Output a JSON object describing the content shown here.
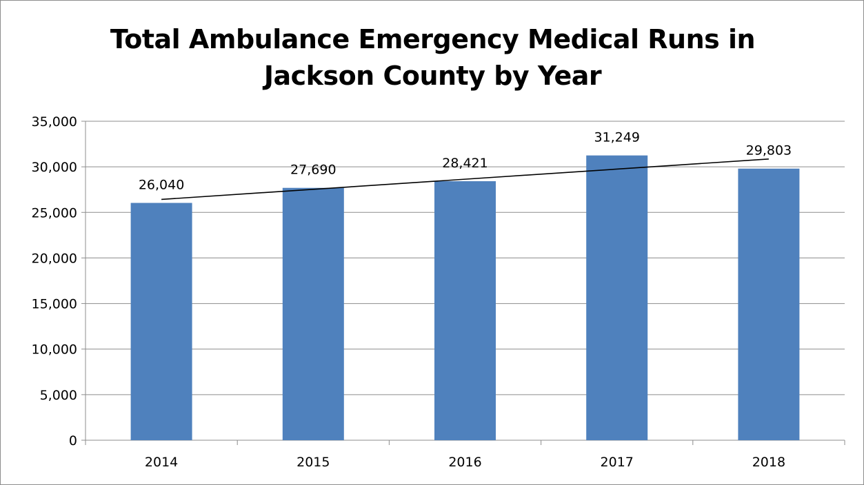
{
  "chart_data": {
    "type": "bar",
    "title_lines": [
      "Total Ambulance Emergency Medical Runs in",
      "Jackson County by Year"
    ],
    "categories": [
      "2014",
      "2015",
      "2016",
      "2017",
      "2018"
    ],
    "values": [
      26040,
      27690,
      28421,
      31249,
      29803
    ],
    "data_labels": [
      "26,040",
      "27,690",
      "28,421",
      "31,249",
      "29,803"
    ],
    "ylim": [
      0,
      35000
    ],
    "yticks": [
      0,
      5000,
      10000,
      15000,
      20000,
      25000,
      30000,
      35000
    ],
    "ytick_labels": [
      "0",
      "5,000",
      "10,000",
      "15,000",
      "20,000",
      "25,000",
      "30,000",
      "35,000"
    ],
    "trendline": "linear",
    "grid": true,
    "legend": "none",
    "xlabel": "",
    "ylabel": "",
    "bar_color": "#4f81bd",
    "grid_color": "#8c8c8c",
    "trend_color": "#000000"
  }
}
